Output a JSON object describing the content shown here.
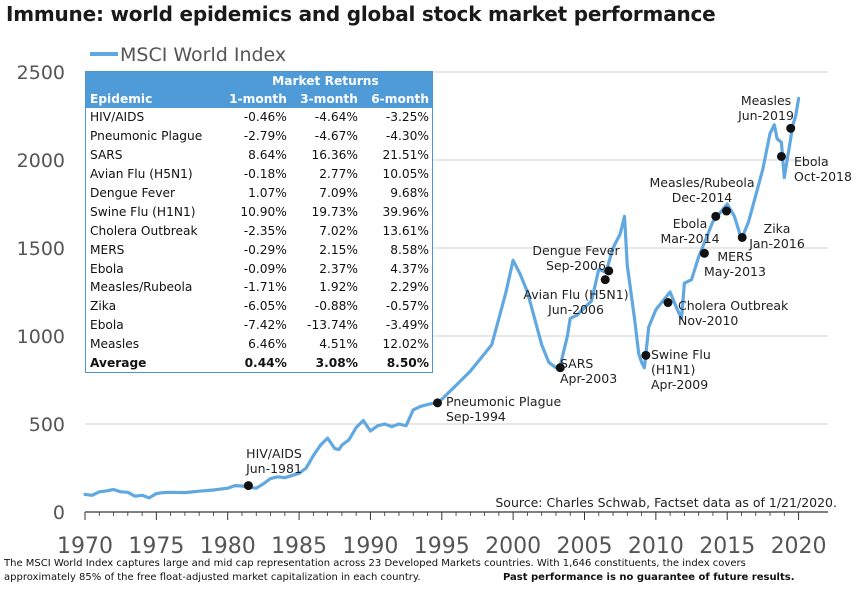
{
  "title": "Immune: world epidemics and global stock market performance",
  "source": "Source: Charles Schwab, Factset data as of 1/21/2020.",
  "footnote_line1": "The MSCI World Index captures large and mid cap representation across 23 Developed Markets countries. With 1,646 constituents, the index covers",
  "footnote_line2": "approximately 85% of the free float-adjusted market capitalization in each country.",
  "disclaimer": "Past performance is no guarantee of future results.",
  "colors": {
    "line": "#62a8e0",
    "header": "#4f9bd8",
    "marker": "#111111",
    "grid": "#d0d0d0",
    "axis_text": "#555555"
  },
  "table": {
    "group_header": "Market Returns",
    "headers": [
      "Epidemic",
      "1-month",
      "3-month",
      "6-month"
    ],
    "rows": [
      [
        "HIV/AIDS",
        "-0.46%",
        "-4.64%",
        "-3.25%"
      ],
      [
        "Pneumonic Plague",
        "-2.79%",
        "-4.67%",
        "-4.30%"
      ],
      [
        "SARS",
        "8.64%",
        "16.36%",
        "21.51%"
      ],
      [
        "Avian Flu (H5N1)",
        "-0.18%",
        "2.77%",
        "10.05%"
      ],
      [
        "Dengue Fever",
        "1.07%",
        "7.09%",
        "9.68%"
      ],
      [
        "Swine Flu (H1N1)",
        "10.90%",
        "19.73%",
        "39.96%"
      ],
      [
        "Cholera Outbreak",
        "-2.35%",
        "7.02%",
        "13.61%"
      ],
      [
        "MERS",
        "-0.29%",
        "2.15%",
        "8.58%"
      ],
      [
        "Ebola",
        "-0.09%",
        "2.37%",
        "4.37%"
      ],
      [
        "Measles/Rubeola",
        "-1.71%",
        "1.92%",
        "2.29%"
      ],
      [
        "Zika",
        "-6.05%",
        "-0.88%",
        "-0.57%"
      ],
      [
        "Ebola",
        "-7.42%",
        "-13.74%",
        "-3.49%"
      ],
      [
        "Measles",
        "6.46%",
        "4.51%",
        "12.02%"
      ]
    ],
    "average": [
      "Average",
      "0.44%",
      "3.08%",
      "8.50%"
    ]
  },
  "chart_data": {
    "type": "line",
    "title": "Immune: world epidemics and global stock market performance",
    "xlabel": "",
    "ylabel": "",
    "xlim": [
      1970,
      2020.1
    ],
    "ylim": [
      0,
      2500
    ],
    "x_ticks": [
      1970,
      1975,
      1980,
      1985,
      1990,
      1995,
      2000,
      2005,
      2010,
      2015,
      2020
    ],
    "y_ticks": [
      0,
      500,
      1000,
      1500,
      2000,
      2500
    ],
    "grid": true,
    "legend": "top-left",
    "series": [
      {
        "name": "MSCI World Index",
        "x": [
          1970,
          1970.5,
          1971,
          1971.5,
          1972,
          1972.5,
          1973,
          1973.5,
          1974,
          1974.5,
          1975,
          1975.5,
          1976,
          1977,
          1978,
          1979,
          1980,
          1980.5,
          1981,
          1981.5,
          1982,
          1982.5,
          1983,
          1983.5,
          1984,
          1985,
          1985.5,
          1986,
          1986.5,
          1987,
          1987.5,
          1987.8,
          1988,
          1988.5,
          1989,
          1989.5,
          1990,
          1990.5,
          1991,
          1991.5,
          1992,
          1992.5,
          1993,
          1993.5,
          1994,
          1994.5,
          1995,
          1995.5,
          1996,
          1996.5,
          1997,
          1997.5,
          1998,
          1998.5,
          1999,
          1999.5,
          2000,
          2000.5,
          2001,
          2001.5,
          2002,
          2002.5,
          2003,
          2003.3,
          2003.8,
          2004,
          2004.5,
          2005,
          2005.5,
          2006,
          2006.5,
          2007,
          2007.5,
          2007.8,
          2008,
          2008.5,
          2008.8,
          2009,
          2009.2,
          2009.5,
          2010,
          2010.5,
          2011,
          2011.5,
          2011.8,
          2012,
          2012.5,
          2013,
          2013.5,
          2014,
          2014.5,
          2015,
          2015.5,
          2016,
          2016.5,
          2017,
          2017.5,
          2018,
          2018.3,
          2018.5,
          2018.8,
          2019,
          2019.3,
          2019.6,
          2019.8,
          2020
        ],
        "values": [
          100,
          95,
          115,
          120,
          128,
          115,
          112,
          90,
          95,
          80,
          105,
          110,
          112,
          110,
          118,
          125,
          135,
          150,
          148,
          140,
          135,
          160,
          190,
          200,
          195,
          220,
          250,
          320,
          380,
          420,
          360,
          355,
          380,
          410,
          480,
          520,
          460,
          490,
          500,
          485,
          500,
          490,
          580,
          600,
          610,
          620,
          640,
          680,
          720,
          760,
          800,
          850,
          900,
          950,
          1100,
          1250,
          1430,
          1350,
          1250,
          1100,
          950,
          850,
          820,
          830,
          1000,
          1100,
          1120,
          1160,
          1200,
          1380,
          1360,
          1500,
          1580,
          1680,
          1400,
          1100,
          900,
          850,
          820,
          1050,
          1150,
          1200,
          1250,
          1150,
          1100,
          1300,
          1320,
          1450,
          1550,
          1650,
          1700,
          1750,
          1680,
          1550,
          1650,
          1800,
          1950,
          2150,
          2200,
          2120,
          2100,
          1900,
          2050,
          2200,
          2250,
          2350
        ]
      }
    ],
    "annotations": [
      {
        "label": [
          "HIV/AIDS",
          "Jun-1981"
        ],
        "x": 1981.45,
        "y": 150
      },
      {
        "label": [
          "Pneumonic Plague",
          "Sep-1994"
        ],
        "x": 1994.7,
        "y": 620
      },
      {
        "label": [
          "SARS",
          "Apr-2003"
        ],
        "x": 2003.3,
        "y": 820
      },
      {
        "label": [
          "Avian Flu (H5N1)",
          "Jun-2006"
        ],
        "x": 2006.45,
        "y": 1320
      },
      {
        "label": [
          "Dengue Fever",
          "Sep-2006"
        ],
        "x": 2006.7,
        "y": 1370
      },
      {
        "label": [
          "Swine Flu",
          "(H1N1)",
          "Apr-2009"
        ],
        "x": 2009.3,
        "y": 890
      },
      {
        "label": [
          "Cholera Outbreak",
          "Nov-2010"
        ],
        "x": 2010.85,
        "y": 1190
      },
      {
        "label": [
          "MERS",
          "May-2013"
        ],
        "x": 2013.4,
        "y": 1470
      },
      {
        "label": [
          "Ebola",
          "Mar-2014"
        ],
        "x": 2014.2,
        "y": 1680
      },
      {
        "label": [
          "Measles/Rubeola",
          "Dec-2014"
        ],
        "x": 2014.95,
        "y": 1710
      },
      {
        "label": [
          "Zika",
          "Jan-2016"
        ],
        "x": 2016.05,
        "y": 1560
      },
      {
        "label": [
          "Ebola",
          "Oct-2018"
        ],
        "x": 2018.8,
        "y": 2020
      },
      {
        "label": [
          "Measles",
          "Jun-2019"
        ],
        "x": 2019.45,
        "y": 2180
      }
    ]
  }
}
